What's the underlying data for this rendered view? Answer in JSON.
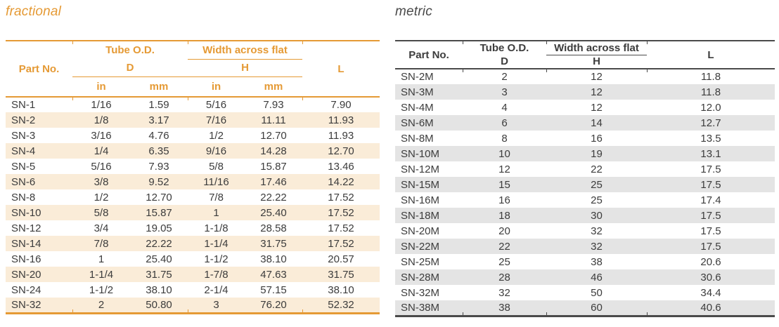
{
  "colors": {
    "accent_orange": "#E59A35",
    "cream_row": "#FAECD8",
    "dark_text": "#3C3C3C",
    "metric_line": "#4A4A4A",
    "metric_stripe": "#E4E4E4"
  },
  "fractional": {
    "title": "fractional",
    "header": {
      "part_no": "Part No.",
      "tube_od": "Tube O.D.",
      "d": "D",
      "width_across_flat": "Width across flat",
      "h": "H",
      "l": "L",
      "in": "in",
      "mm": "mm"
    },
    "rows": [
      {
        "part": "SN-1",
        "d_in": "1/16",
        "d_mm": "1.59",
        "h_in": "5/16",
        "h_mm": "7.93",
        "l": "7.90"
      },
      {
        "part": "SN-2",
        "d_in": "1/8",
        "d_mm": "3.17",
        "h_in": "7/16",
        "h_mm": "11.11",
        "l": "11.93"
      },
      {
        "part": "SN-3",
        "d_in": "3/16",
        "d_mm": "4.76",
        "h_in": "1/2",
        "h_mm": "12.70",
        "l": "11.93"
      },
      {
        "part": "SN-4",
        "d_in": "1/4",
        "d_mm": "6.35",
        "h_in": "9/16",
        "h_mm": "14.28",
        "l": "12.70"
      },
      {
        "part": "SN-5",
        "d_in": "5/16",
        "d_mm": "7.93",
        "h_in": "5/8",
        "h_mm": "15.87",
        "l": "13.46"
      },
      {
        "part": "SN-6",
        "d_in": "3/8",
        "d_mm": "9.52",
        "h_in": "11/16",
        "h_mm": "17.46",
        "l": "14.22"
      },
      {
        "part": "SN-8",
        "d_in": "1/2",
        "d_mm": "12.70",
        "h_in": "7/8",
        "h_mm": "22.22",
        "l": "17.52"
      },
      {
        "part": "SN-10",
        "d_in": "5/8",
        "d_mm": "15.87",
        "h_in": "1",
        "h_mm": "25.40",
        "l": "17.52"
      },
      {
        "part": "SN-12",
        "d_in": "3/4",
        "d_mm": "19.05",
        "h_in": "1-1/8",
        "h_mm": "28.58",
        "l": "17.52"
      },
      {
        "part": "SN-14",
        "d_in": "7/8",
        "d_mm": "22.22",
        "h_in": "1-1/4",
        "h_mm": "31.75",
        "l": "17.52"
      },
      {
        "part": "SN-16",
        "d_in": "1",
        "d_mm": "25.40",
        "h_in": "1-1/2",
        "h_mm": "38.10",
        "l": "20.57"
      },
      {
        "part": "SN-20",
        "d_in": "1-1/4",
        "d_mm": "31.75",
        "h_in": "1-7/8",
        "h_mm": "47.63",
        "l": "31.75"
      },
      {
        "part": "SN-24",
        "d_in": "1-1/2",
        "d_mm": "38.10",
        "h_in": "2-1/4",
        "h_mm": "57.15",
        "l": "38.10"
      },
      {
        "part": "SN-32",
        "d_in": "2",
        "d_mm": "50.80",
        "h_in": "3",
        "h_mm": "76.20",
        "l": "52.32"
      }
    ]
  },
  "metric": {
    "title": "metric",
    "header": {
      "part_no": "Part No.",
      "tube_od": "Tube O.D.",
      "d": "D",
      "width_across_flat": "Width across flat",
      "h": "H",
      "l": "L"
    },
    "rows": [
      {
        "part": "SN-2M",
        "d": "2",
        "h": "12",
        "l": "11.8"
      },
      {
        "part": "SN-3M",
        "d": "3",
        "h": "12",
        "l": "11.8"
      },
      {
        "part": "SN-4M",
        "d": "4",
        "h": "12",
        "l": "12.0"
      },
      {
        "part": "SN-6M",
        "d": "6",
        "h": "14",
        "l": "12.7"
      },
      {
        "part": "SN-8M",
        "d": "8",
        "h": "16",
        "l": "13.5"
      },
      {
        "part": "SN-10M",
        "d": "10",
        "h": "19",
        "l": "13.1"
      },
      {
        "part": "SN-12M",
        "d": "12",
        "h": "22",
        "l": "17.5"
      },
      {
        "part": "SN-15M",
        "d": "15",
        "h": "25",
        "l": "17.5"
      },
      {
        "part": "SN-16M",
        "d": "16",
        "h": "25",
        "l": "17.4"
      },
      {
        "part": "SN-18M",
        "d": "18",
        "h": "30",
        "l": "17.5"
      },
      {
        "part": "SN-20M",
        "d": "20",
        "h": "32",
        "l": "17.5"
      },
      {
        "part": "SN-22M",
        "d": "22",
        "h": "32",
        "l": "17.5"
      },
      {
        "part": "SN-25M",
        "d": "25",
        "h": "38",
        "l": "20.6"
      },
      {
        "part": "SN-28M",
        "d": "28",
        "h": "46",
        "l": "30.6"
      },
      {
        "part": "SN-32M",
        "d": "32",
        "h": "50",
        "l": "34.4"
      },
      {
        "part": "SN-38M",
        "d": "38",
        "h": "60",
        "l": "40.6"
      }
    ]
  }
}
